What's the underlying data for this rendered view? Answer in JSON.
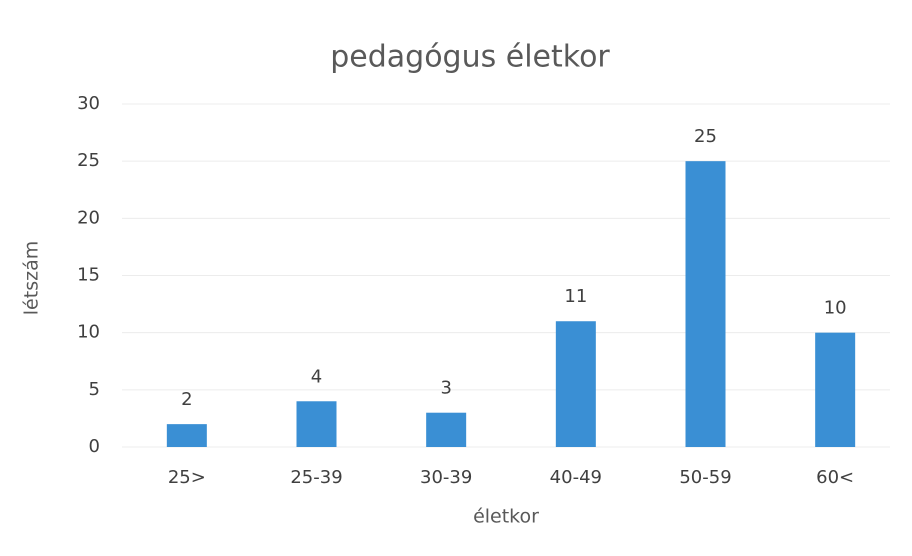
{
  "chart_data": {
    "type": "bar",
    "title": "pedagógus életkor",
    "x_label": "életkor",
    "y_label": "létszám",
    "categories": [
      "25>",
      "25-39",
      "30-39",
      "40-49",
      "50-59",
      "60<"
    ],
    "values": [
      2,
      4,
      3,
      11,
      25,
      10
    ],
    "color": "#3a8fd4",
    "ylim": [
      0,
      30
    ],
    "yticks": [
      0,
      5,
      10,
      15,
      20,
      25,
      30
    ],
    "grid": true
  }
}
